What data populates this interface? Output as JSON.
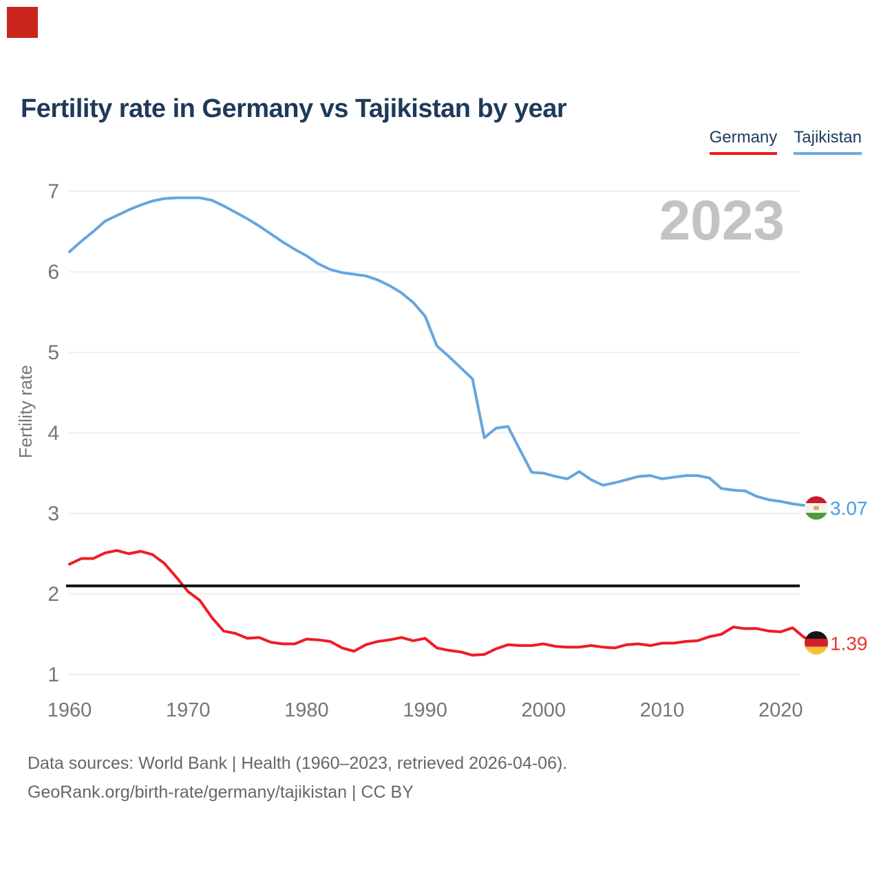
{
  "marker": {
    "color": "#c9251c"
  },
  "header": {
    "title": "Fertility rate in Germany vs Tajikistan by year"
  },
  "legend": [
    {
      "label": "Germany",
      "color": "#f01b1b"
    },
    {
      "label": "Tajikistan",
      "color": "#6cabde"
    }
  ],
  "watermark": "2023",
  "footer": {
    "line1": "Data sources: World Bank | Health (1960–2023, retrieved 2026-04-06).",
    "line2": "GeoRank.org/birth-rate/germany/tajikistan | CC BY"
  },
  "chart_data": {
    "type": "line",
    "title": "Fertility rate in Germany vs Tajikistan by year",
    "xlabel": "",
    "ylabel": "Fertility rate",
    "xlim": [
      1960,
      2023
    ],
    "ylim": [
      0.85,
      7.1
    ],
    "grid": "horizontal",
    "legend_position": "top-right",
    "x_ticks": [
      1960,
      1970,
      1980,
      1990,
      2000,
      2010,
      2020
    ],
    "y_ticks": [
      1,
      2,
      3,
      4,
      5,
      6,
      7
    ],
    "reference_line": {
      "value": 2.1,
      "color": "#111111"
    },
    "years": [
      1960,
      1961,
      1962,
      1963,
      1964,
      1965,
      1966,
      1967,
      1968,
      1969,
      1970,
      1971,
      1972,
      1973,
      1974,
      1975,
      1976,
      1977,
      1978,
      1979,
      1980,
      1981,
      1982,
      1983,
      1984,
      1985,
      1986,
      1987,
      1988,
      1989,
      1990,
      1991,
      1992,
      1993,
      1994,
      1995,
      1996,
      1997,
      1998,
      1999,
      2000,
      2001,
      2002,
      2003,
      2004,
      2005,
      2006,
      2007,
      2008,
      2009,
      2010,
      2011,
      2012,
      2013,
      2014,
      2015,
      2016,
      2017,
      2018,
      2019,
      2020,
      2021,
      2022,
      2023
    ],
    "series": [
      {
        "name": "Tajikistan",
        "flag": "tajikistan",
        "color": "#66a6de",
        "value_color": "#4d9be0",
        "end_label": "3.07",
        "values": [
          6.25,
          6.38,
          6.5,
          6.63,
          6.7,
          6.77,
          6.83,
          6.88,
          6.91,
          6.92,
          6.92,
          6.92,
          6.89,
          6.82,
          6.74,
          6.66,
          6.57,
          6.47,
          6.37,
          6.28,
          6.2,
          6.1,
          6.03,
          5.99,
          5.97,
          5.95,
          5.9,
          5.83,
          5.74,
          5.62,
          5.45,
          5.08,
          4.95,
          4.81,
          4.67,
          3.94,
          4.06,
          4.08,
          3.79,
          3.51,
          3.5,
          3.46,
          3.43,
          3.52,
          3.42,
          3.35,
          3.38,
          3.42,
          3.46,
          3.47,
          3.43,
          3.45,
          3.47,
          3.47,
          3.44,
          3.31,
          3.29,
          3.28,
          3.21,
          3.17,
          3.15,
          3.12,
          3.1,
          3.07
        ]
      },
      {
        "name": "Germany",
        "flag": "germany",
        "color": "#ee1c25",
        "value_color": "#e9352e",
        "end_label": "1.39",
        "values": [
          2.37,
          2.44,
          2.44,
          2.51,
          2.54,
          2.5,
          2.53,
          2.49,
          2.38,
          2.21,
          2.03,
          1.92,
          1.71,
          1.54,
          1.51,
          1.45,
          1.46,
          1.4,
          1.38,
          1.38,
          1.44,
          1.43,
          1.41,
          1.33,
          1.29,
          1.37,
          1.41,
          1.43,
          1.46,
          1.42,
          1.45,
          1.33,
          1.3,
          1.28,
          1.24,
          1.25,
          1.32,
          1.37,
          1.36,
          1.36,
          1.38,
          1.35,
          1.34,
          1.34,
          1.36,
          1.34,
          1.33,
          1.37,
          1.38,
          1.36,
          1.39,
          1.39,
          1.41,
          1.42,
          1.47,
          1.5,
          1.59,
          1.57,
          1.57,
          1.54,
          1.53,
          1.58,
          1.46,
          1.39
        ]
      }
    ]
  }
}
